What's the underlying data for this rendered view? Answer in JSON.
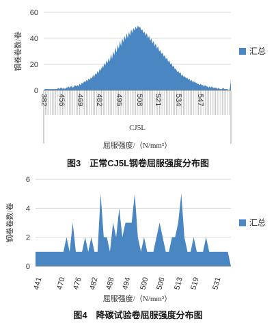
{
  "chart_data": [
    {
      "type": "area",
      "caption": "图3　正常CJ5L钢卷屈服强度分布图",
      "ylabel": "钢卷卷数/卷",
      "xlabel": "屈服强度/（N/mm²）",
      "category_label": "CJ5L",
      "ylim": [
        0,
        60
      ],
      "yticks": [
        0,
        20,
        40,
        60
      ],
      "xticks": [
        "382",
        "456",
        "469",
        "482",
        "495",
        "508",
        "521",
        "534",
        "547"
      ],
      "legend": [
        "汇总"
      ],
      "legend_position": "right",
      "color": "#4a86c2",
      "grid": true,
      "series": [
        {
          "name": "汇总",
          "values": [
            0,
            1,
            1,
            1,
            1,
            1,
            1,
            1,
            1,
            1,
            1,
            1,
            1,
            2,
            1,
            2,
            2,
            1,
            2,
            1,
            2,
            2,
            3,
            2,
            3,
            3,
            2,
            3,
            4,
            3,
            4,
            3,
            5,
            4,
            6,
            5,
            7,
            6,
            8,
            7,
            9,
            8,
            10,
            9,
            12,
            10,
            13,
            12,
            15,
            13,
            17,
            15,
            19,
            17,
            21,
            19,
            23,
            21,
            25,
            22,
            28,
            24,
            30,
            27,
            33,
            29,
            35,
            32,
            38,
            34,
            40,
            37,
            42,
            39,
            44,
            40,
            45,
            42,
            47,
            44,
            48,
            46,
            49,
            47,
            50,
            48,
            49,
            46,
            47,
            44,
            45,
            42,
            44,
            40,
            42,
            38,
            40,
            36,
            38,
            34,
            36,
            32,
            34,
            30,
            31,
            28,
            29,
            26,
            27,
            24,
            25,
            22,
            23,
            20,
            21,
            18,
            19,
            16,
            17,
            14,
            15,
            13,
            14,
            11,
            12,
            10,
            11,
            9,
            10,
            8,
            9,
            7,
            8,
            6,
            7,
            6,
            6,
            5,
            5,
            4,
            5,
            4,
            4,
            3,
            4,
            3,
            3,
            2,
            3,
            2,
            3,
            2,
            2,
            2,
            2,
            1,
            2,
            1,
            1,
            1,
            2,
            1,
            1,
            1,
            1,
            0,
            1,
            8
          ]
        }
      ]
    },
    {
      "type": "area",
      "caption": "图4　降碳试验卷屈服强度分布图",
      "ylabel": "钢卷卷数/卷",
      "xlabel": "屈服强度/（N/mm²）",
      "ylim": [
        0,
        6
      ],
      "yticks": [
        0,
        2,
        4,
        6
      ],
      "xticks": [
        "441",
        "470",
        "476",
        "482",
        "488",
        "494",
        "500",
        "506",
        "513",
        "519",
        "531"
      ],
      "legend": [
        "汇总"
      ],
      "legend_position": "right",
      "color": "#4a86c2",
      "grid": true,
      "series": [
        {
          "name": "汇总",
          "values": [
            1,
            1,
            1,
            1,
            1,
            1,
            1,
            1,
            1,
            1,
            2,
            1,
            3,
            1,
            1,
            1,
            2,
            1,
            2,
            1,
            1,
            5,
            2,
            2,
            1,
            3,
            2,
            4,
            2,
            3,
            3,
            3,
            5,
            2,
            1,
            2,
            1,
            1,
            1,
            2,
            3,
            2,
            1,
            1,
            2,
            2,
            3,
            5,
            2,
            1,
            1,
            2,
            1,
            1,
            1,
            2,
            1,
            1,
            1,
            1,
            1,
            1,
            1,
            0
          ]
        }
      ]
    }
  ]
}
